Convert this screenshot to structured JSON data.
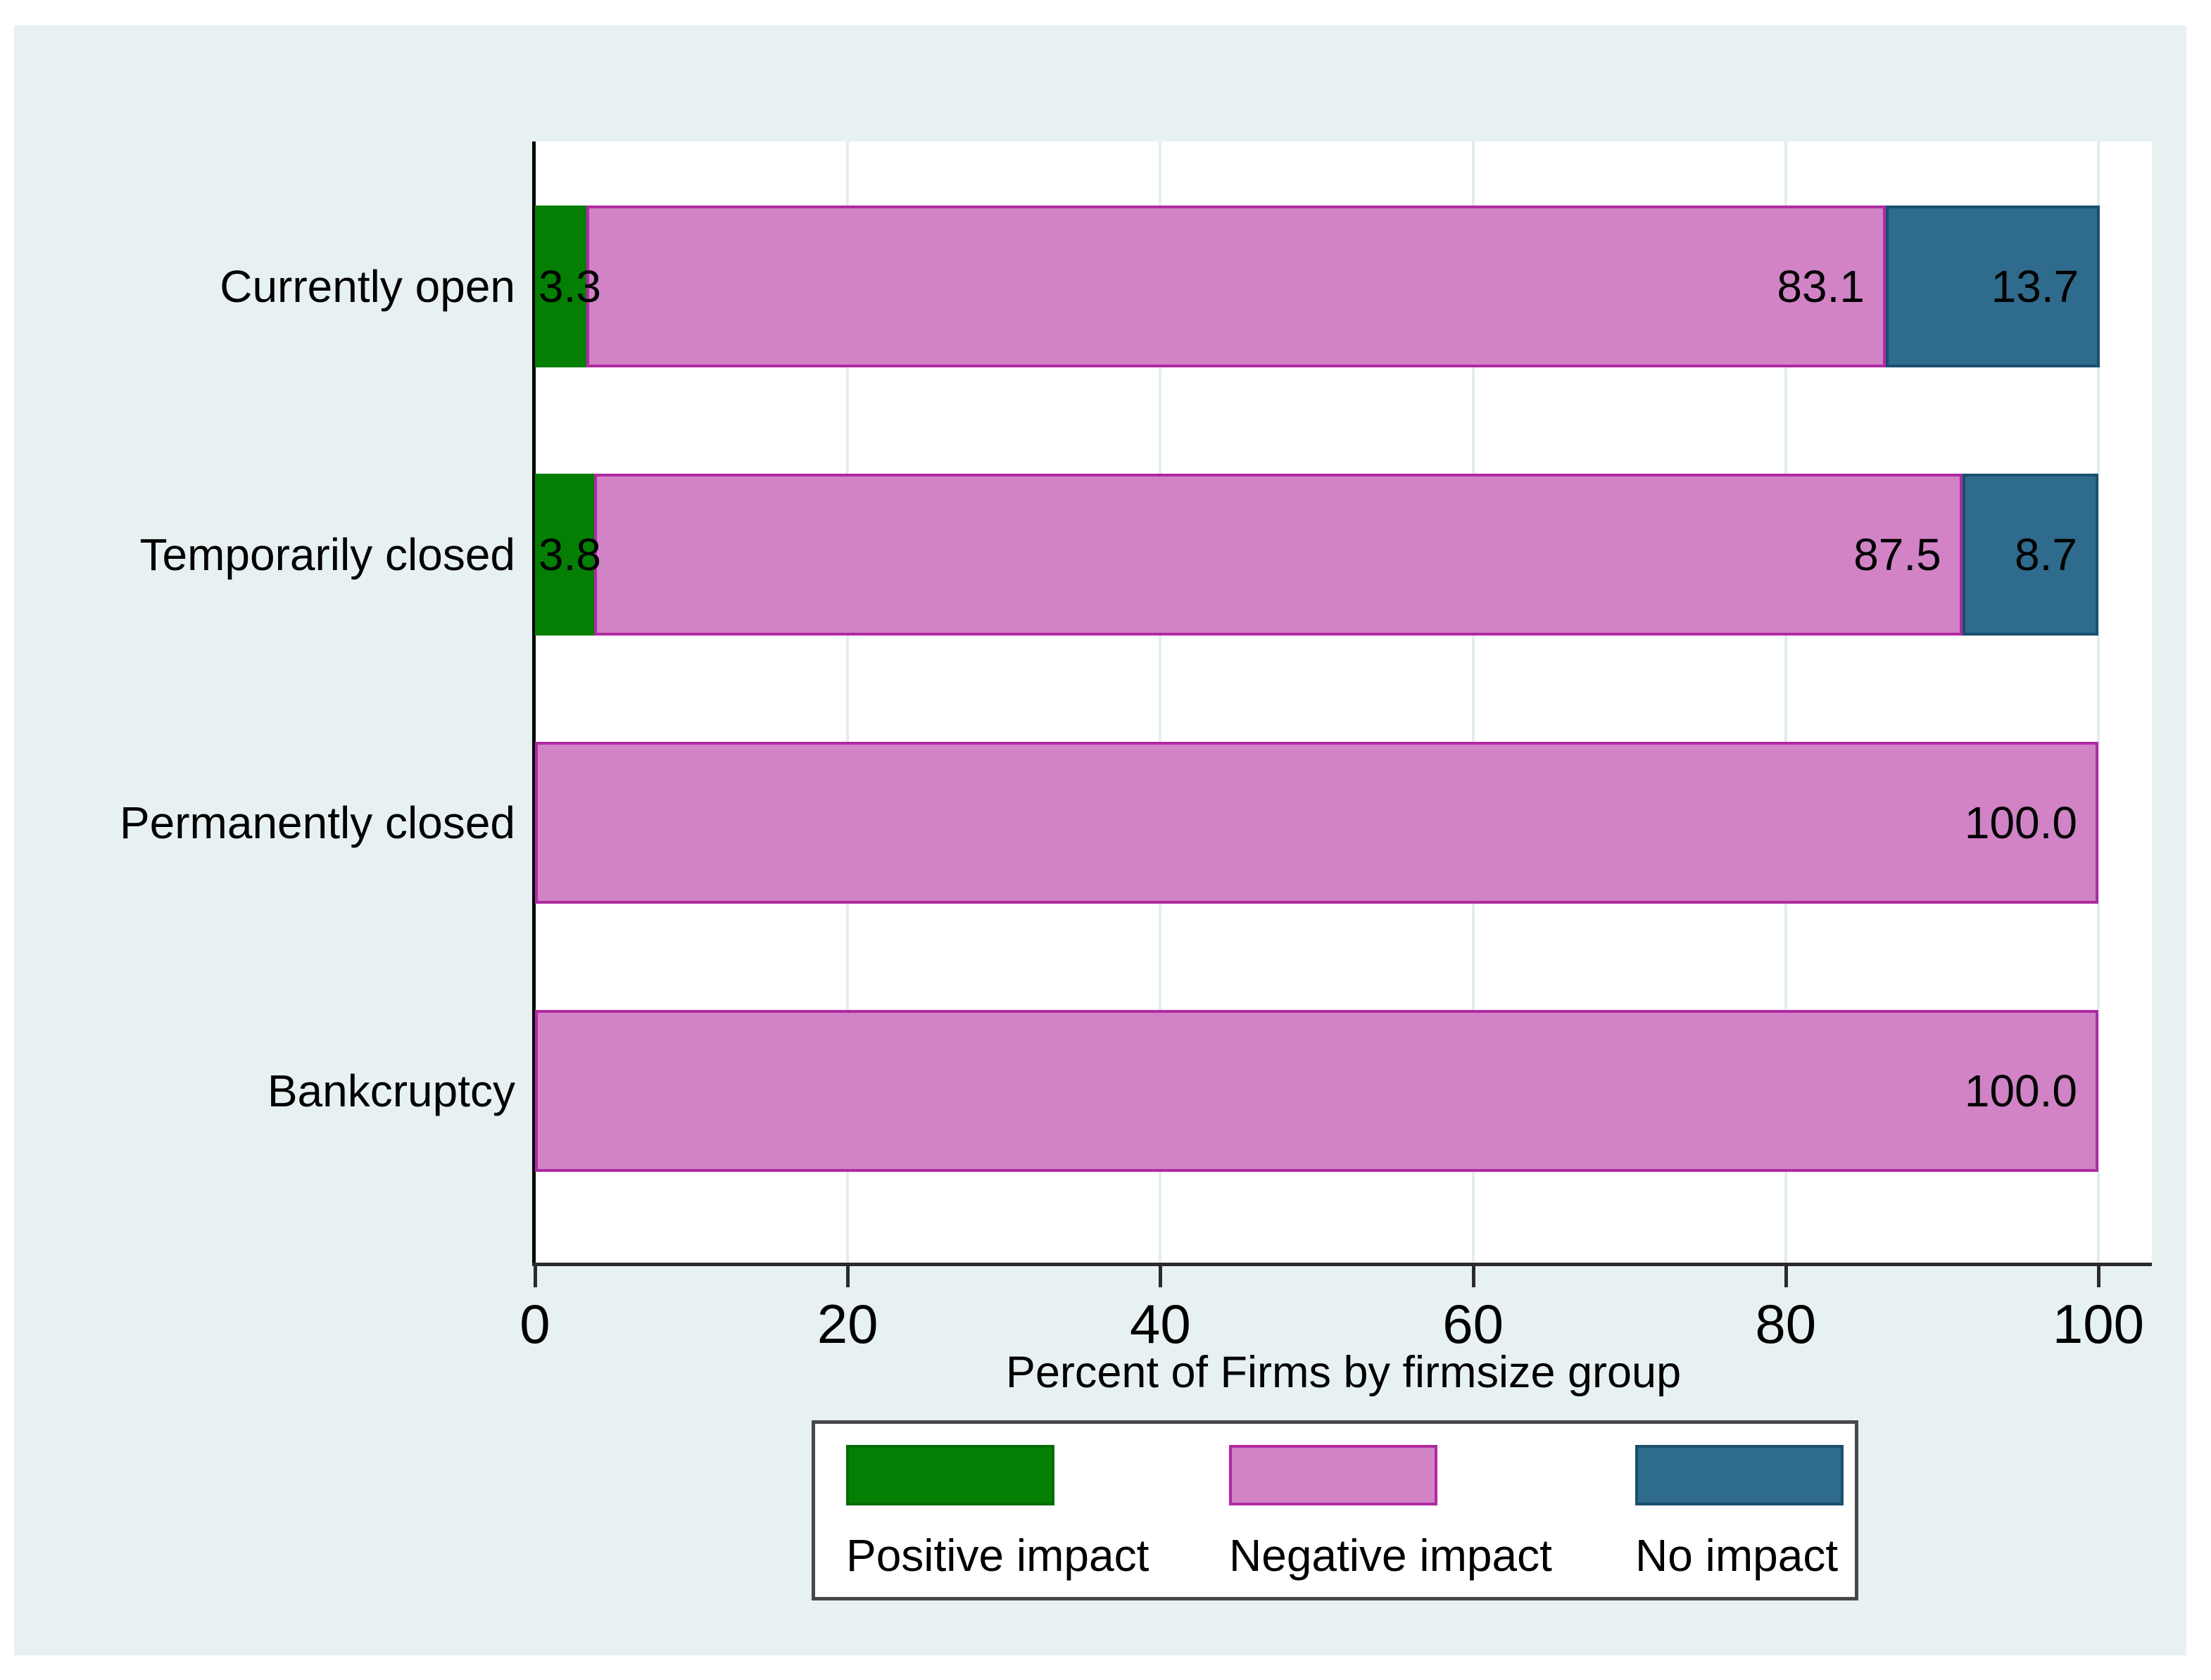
{
  "chart": {
    "axis_title": "Percent of Firms by firmsize group"
  },
  "colors": {
    "page_background": "#ffffff",
    "panel_background": "#e7f1f2",
    "plot_background": "#ffffff",
    "gridline": "#e2edef",
    "axis_line": "#000000",
    "series": {
      "Positive impact": {
        "fill": "#047f04",
        "border": "#036c03"
      },
      "Negative impact": {
        "fill": "#d183c6",
        "border": "#b02aa2"
      },
      "No impact": {
        "fill": "#2f6b8c",
        "border": "#1a4f6e"
      }
    }
  },
  "chart_data": {
    "type": "bar",
    "orientation": "horizontal",
    "stacked": true,
    "title": "",
    "xlabel": "Percent of Firms by firmsize group",
    "ylabel": "",
    "xlim": [
      0,
      100
    ],
    "xticks": [
      0,
      20,
      40,
      60,
      80,
      100
    ],
    "grid": true,
    "legend_position": "bottom",
    "categories": [
      "Currently open",
      "Temporarily closed",
      "Permanently closed",
      "Bankcruptcy"
    ],
    "series": [
      {
        "name": "Positive impact",
        "values": [
          3.3,
          3.8,
          0,
          0
        ]
      },
      {
        "name": "Negative impact",
        "values": [
          83.1,
          87.5,
          100.0,
          100.0
        ]
      },
      {
        "name": "No impact",
        "values": [
          13.7,
          8.7,
          0,
          0
        ]
      }
    ],
    "bar_value_labels": [
      [
        "3.3",
        "83.1",
        "13.7"
      ],
      [
        "3.8",
        "87.5",
        "8.7"
      ],
      [
        "",
        "100.0",
        ""
      ],
      [
        "",
        "100.0",
        ""
      ]
    ]
  },
  "legend": {
    "items": [
      {
        "label": "Positive impact"
      },
      {
        "label": "Negative impact"
      },
      {
        "label": "No impact"
      }
    ]
  }
}
